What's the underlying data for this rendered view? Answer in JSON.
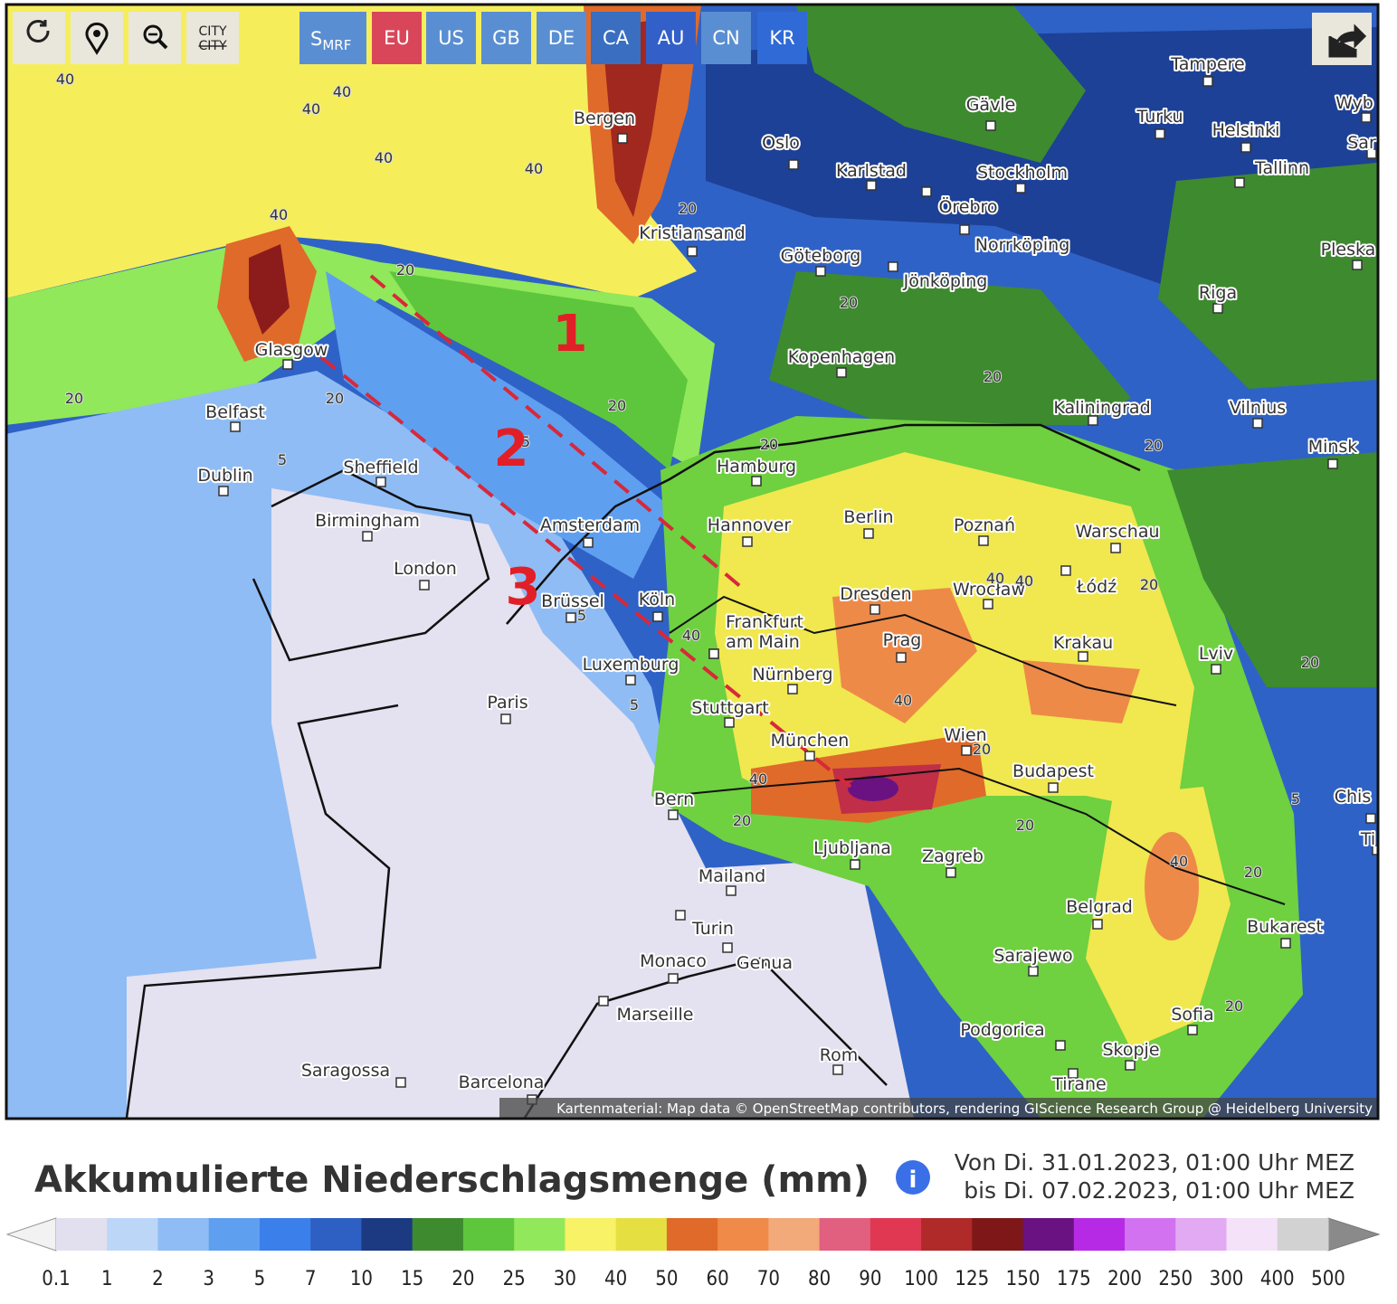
{
  "toolbar": {
    "city_top": "CITY",
    "city_struck": "CITY",
    "model_s": "S",
    "model_sub": "MRF",
    "regions": [
      "EU",
      "US",
      "GB",
      "DE",
      "CA",
      "AU",
      "CN",
      "KR"
    ]
  },
  "map": {
    "cities": [
      "Bergen",
      "Oslo",
      "Karlstad",
      "Gävle",
      "Tampere",
      "Turku",
      "Helsinki",
      "Wyb",
      "Sar",
      "Tallinn",
      "Stockholm",
      "Örebro",
      "Norrköping",
      "Kristiansand",
      "Göteborg",
      "Jönköping",
      "Pleska",
      "Riga",
      "Glasgow",
      "Kopenhagen",
      "Belfast",
      "Kaliningrad",
      "Vilnius",
      "Minsk",
      "Dublin",
      "Sheffield",
      "Hamburg",
      "Birmingham",
      "Amsterdam",
      "Hannover",
      "Berlin",
      "Poznań",
      "Warschau",
      "London",
      "Wrocław",
      "Łódź",
      "Köln",
      "Brüssel",
      "Dresden",
      "Frankfurt",
      "am Main",
      "Prag",
      "Krakau",
      "Lviv",
      "Luxemburg",
      "Nürnberg",
      "Paris",
      "Stuttgart",
      "Wien",
      "München",
      "Budapest",
      "Chis",
      "Bern",
      "Ljubljana",
      "Zagreb",
      "Mailand",
      "Belgrad",
      "Bukarest",
      "Turin",
      "Sarajewo",
      "Monaco",
      "Genua",
      "Marseille",
      "Sofia",
      "Podgorica",
      "Rom",
      "Skopje",
      "Saragossa",
      "Tirane",
      "Barcelona",
      "Ti"
    ],
    "contour_labels": [
      40,
      40,
      40,
      40,
      40,
      20,
      40,
      20,
      20,
      20,
      20,
      20,
      5,
      20,
      20,
      20,
      40,
      40,
      20,
      40,
      40,
      20,
      5,
      5,
      5,
      40,
      20,
      40,
      20,
      20,
      20,
      5,
      20
    ],
    "annotations": [
      "1",
      "2",
      "3"
    ],
    "attribution": "Kartenmaterial: Map data © OpenStreetMap contributors, rendering GIScience Research Group @ Heidelberg University"
  },
  "legend": {
    "title": "Akkumulierte Niederschlagsmenge (mm)",
    "period_from": "Von Di. 31.01.2023, 01:00 Uhr MEZ",
    "period_to": "bis Di. 07.02.2023, 01:00 Uhr MEZ",
    "bounds": [
      0.1,
      1,
      2,
      3,
      5,
      7,
      10,
      15,
      20,
      25,
      30,
      40,
      50,
      60,
      70,
      80,
      90,
      100,
      125,
      150,
      175,
      200,
      250,
      300,
      400,
      500
    ],
    "colors": [
      "#e2dfef",
      "#bcd6f8",
      "#8fbcf4",
      "#5f9ff0",
      "#3b80ea",
      "#2e5fc2",
      "#1b3a82",
      "#3e8a2f",
      "#5ec63c",
      "#90e85a",
      "#f8f266",
      "#e6df42",
      "#e06a2a",
      "#f08a48",
      "#f2aa7a",
      "#e2607f",
      "#e03852",
      "#b02a2a",
      "#7e1818",
      "#6a1282",
      "#b62ae6",
      "#d272f0",
      "#e2aaf2",
      "#f4e2f8",
      "#d2d2d2"
    ]
  }
}
